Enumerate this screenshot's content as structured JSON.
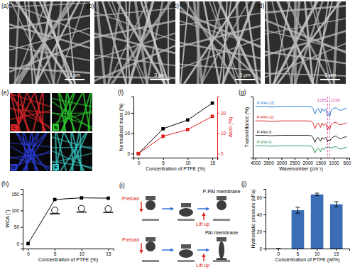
{
  "panels": [
    {
      "label": "(a)",
      "scale_bar": "3 μm"
    },
    {
      "label": "(b)",
      "scale_bar": "3 μm"
    },
    {
      "label": "(c)",
      "scale_bar": "3 μm"
    },
    {
      "label": "(d)",
      "scale_bar": "3 μm"
    },
    {
      "label": "(e)",
      "maps": [
        {
          "element": "C",
          "color": "#e8262a"
        },
        {
          "element": "N",
          "color": "#2ed12e"
        },
        {
          "element": "O",
          "color": "#2a3bd6"
        },
        {
          "element": "F",
          "color": "#37c6c0"
        }
      ]
    },
    {
      "label": "(i)",
      "rows": [
        {
          "membrane": "P-PAI membrane",
          "preload": "Preload",
          "lift": "Lift up"
        },
        {
          "membrane": "PAI membrane",
          "preload": "Preload",
          "lift": "Lift up"
        }
      ]
    }
  ],
  "chart_data": [
    {
      "type": "line",
      "title": "(f)",
      "x": [
        0,
        5,
        10,
        15
      ],
      "xlim": [
        -1,
        16
      ],
      "xticks": [
        0,
        5,
        10,
        15
      ],
      "xlabel": "Concentration of PTFE (%)",
      "ylabel": "Normalized mass (%)",
      "y2label": "Atom (%)",
      "ylim": [
        -2,
        28
      ],
      "yticks": [
        0,
        10,
        20
      ],
      "y2lim": [
        -2,
        28
      ],
      "y2ticks": [
        0,
        10,
        20
      ],
      "marker": "square",
      "series": [
        {
          "color": "#000000",
          "values": [
            0,
            12.2,
            16.5,
            24.8
          ]
        },
        {
          "color": "#e0201b",
          "axis": "y2",
          "values": [
            0,
            8.5,
            11.8,
            18.3
          ]
        }
      ]
    },
    {
      "type": "line",
      "title": "(g)",
      "x": [
        4000,
        3600,
        3400,
        3000,
        2600,
        2200,
        2000,
        1850,
        1780,
        1720,
        1650,
        1600,
        1500,
        1450,
        1380,
        1300,
        1235,
        1200,
        1150,
        1100,
        1000,
        900,
        820,
        720,
        600,
        500
      ],
      "xlim": [
        4100,
        400
      ],
      "xticks": [
        4000,
        3500,
        3000,
        2500,
        2000,
        1500,
        1000,
        500
      ],
      "ylim": [
        12,
        105
      ],
      "yticks": [],
      "tick_labels": "x",
      "xlabel": "Wavenumber (cm⁻¹)",
      "ylabel": "Transmittance (%)",
      "annotations": [
        {
          "x": 1235,
          "text": "1235"
        },
        {
          "x": 1150,
          "text": "1150"
        }
      ],
      "series": [
        {
          "name": "P-PAI-15",
          "color": "#2b7bd6",
          "values": [
            90,
            90,
            89,
            90,
            90,
            90,
            90,
            89.5,
            86,
            78,
            85,
            87,
            80,
            87,
            83,
            86,
            76,
            80,
            74,
            84,
            87,
            88,
            85,
            84,
            86,
            87
          ]
        },
        {
          "name": "P-PAI-10",
          "color": "#e02a2a",
          "values": [
            68,
            68,
            67,
            68,
            68,
            68,
            68,
            67.5,
            64,
            56,
            63,
            65,
            58,
            65,
            61,
            64,
            54,
            59,
            55,
            62,
            65,
            66,
            63,
            62,
            64,
            65
          ]
        },
        {
          "name": "P-PAI-5",
          "color": "#222222",
          "values": [
            46,
            46,
            45.5,
            46,
            46,
            46,
            46,
            45.5,
            42,
            35,
            41,
            43,
            37,
            43,
            40,
            43,
            36,
            39,
            37,
            41,
            44,
            45,
            42,
            41,
            43,
            44
          ]
        },
        {
          "name": "P-PAI-0",
          "color": "#2e9a5a",
          "values": [
            30,
            30,
            29.5,
            30,
            30,
            30,
            30,
            29.5,
            26,
            19,
            25,
            27,
            21,
            27,
            24,
            28,
            27,
            28,
            27,
            27,
            28,
            29,
            26,
            25,
            27,
            28
          ]
        }
      ]
    },
    {
      "type": "line",
      "title": "(h)",
      "x": [
        0,
        5,
        10,
        15
      ],
      "values": [
        0,
        133,
        138,
        137
      ],
      "xlim": [
        -1,
        16
      ],
      "xticks": [
        0,
        5,
        10,
        15
      ],
      "ylim": [
        -15,
        165
      ],
      "yticks": [
        0,
        50,
        100,
        150
      ],
      "xlabel": "Concentration of PTFE (%)",
      "ylabel": "WCA (°)",
      "color": "#000000",
      "marker": "square"
    },
    {
      "type": "bar",
      "title": "(j)",
      "categories": [
        "0",
        "5",
        "10",
        "15"
      ],
      "values": [
        0,
        45,
        63.5,
        52
      ],
      "errors": [
        0,
        3.5,
        1.5,
        3
      ],
      "ylim": [
        0,
        70
      ],
      "yticks": [
        0,
        20,
        40,
        60
      ],
      "xlabel": "Concentration of PTFE (wt%)",
      "ylabel": "Hydrostatic pressure (kPa)",
      "color": "#3a6db5"
    }
  ]
}
